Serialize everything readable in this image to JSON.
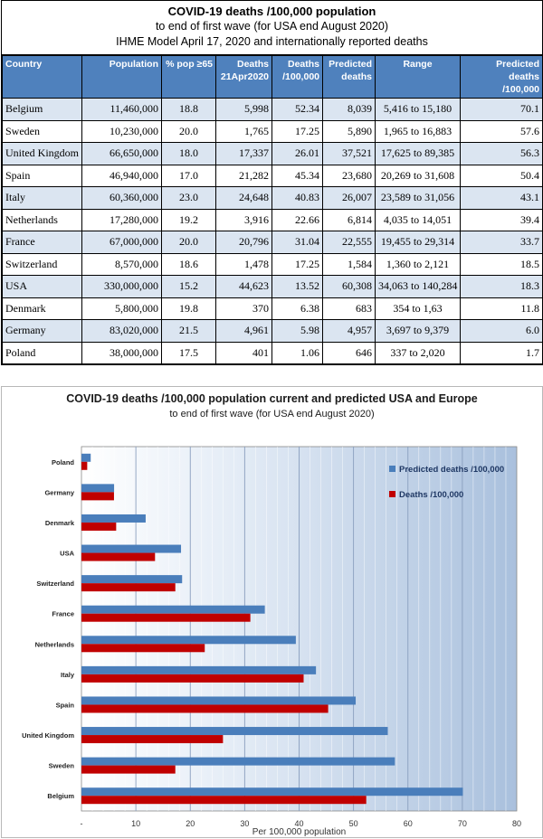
{
  "table": {
    "title": "COVID-19 deaths /100,000 population",
    "subtitle1": "to end of first wave (for USA end August 2020)",
    "subtitle2": "IHME Model April 17, 2020 and internationally reported deaths",
    "headers": {
      "country": "Country",
      "population": "Population",
      "pop65": "% pop ≥65",
      "deaths_a": "Deaths",
      "deaths_b": "21Apr2020",
      "deaths100_a": "Deaths",
      "deaths100_b": "/100,000",
      "predicted_a": "Predicted",
      "predicted_b": "deaths",
      "range": "Range",
      "pred100_a": "Predicted deaths",
      "pred100_b": "/100,000"
    },
    "rows": [
      {
        "country": "Belgium",
        "population": "11,460,000",
        "pop65": "18.8",
        "deaths": "5,998",
        "deaths100": "52.34",
        "predicted": "8,039",
        "range": "5,416 to 15,180",
        "pred100": "70.1"
      },
      {
        "country": "Sweden",
        "population": "10,230,000",
        "pop65": "20.0",
        "deaths": "1,765",
        "deaths100": "17.25",
        "predicted": "5,890",
        "range": "1,965 to 16,883",
        "pred100": "57.6"
      },
      {
        "country": "United Kingdom",
        "population": "66,650,000",
        "pop65": "18.0",
        "deaths": "17,337",
        "deaths100": "26.01",
        "predicted": "37,521",
        "range": "17,625 to 89,385",
        "pred100": "56.3"
      },
      {
        "country": "Spain",
        "population": "46,940,000",
        "pop65": "17.0",
        "deaths": "21,282",
        "deaths100": "45.34",
        "predicted": "23,680",
        "range": "20,269 to 31,608",
        "pred100": "50.4"
      },
      {
        "country": "Italy",
        "population": "60,360,000",
        "pop65": "23.0",
        "deaths": "24,648",
        "deaths100": "40.83",
        "predicted": "26,007",
        "range": "23,589 to 31,056",
        "pred100": "43.1"
      },
      {
        "country": "Netherlands",
        "population": "17,280,000",
        "pop65": "19.2",
        "deaths": "3,916",
        "deaths100": "22.66",
        "predicted": "6,814",
        "range": "4,035 to 14,051",
        "pred100": "39.4"
      },
      {
        "country": "France",
        "population": "67,000,000",
        "pop65": "20.0",
        "deaths": "20,796",
        "deaths100": "31.04",
        "predicted": "22,555",
        "range": "19,455 to 29,314",
        "pred100": "33.7"
      },
      {
        "country": "Switzerland",
        "population": "8,570,000",
        "pop65": "18.6",
        "deaths": "1,478",
        "deaths100": "17.25",
        "predicted": "1,584",
        "range": "1,360 to 2,121",
        "pred100": "18.5"
      },
      {
        "country": "USA",
        "population": "330,000,000",
        "pop65": "15.2",
        "deaths": "44,623",
        "deaths100": "13.52",
        "predicted": "60,308",
        "range": "34,063 to 140,284",
        "pred100": "18.3"
      },
      {
        "country": "Denmark",
        "population": "5,800,000",
        "pop65": "19.8",
        "deaths": "370",
        "deaths100": "6.38",
        "predicted": "683",
        "range": "354 to 1,63",
        "pred100": "11.8"
      },
      {
        "country": "Germany",
        "population": "83,020,000",
        "pop65": "21.5",
        "deaths": "4,961",
        "deaths100": "5.98",
        "predicted": "4,957",
        "range": "3,697 to 9,379",
        "pred100": "6.0"
      },
      {
        "country": "Poland",
        "population": "38,000,000",
        "pop65": "17.5",
        "deaths": "401",
        "deaths100": "1.06",
        "predicted": "646",
        "range": "337 to 2,020",
        "pred100": "1.7"
      }
    ]
  },
  "chart_data": {
    "type": "bar",
    "orientation": "horizontal",
    "title": "COVID-19 deaths /100,000 population current and predicted USA and Europe",
    "subtitle": "to end of first wave (for USA end August 2020)",
    "xlabel": "Per 100,000 population",
    "xlim": [
      0,
      80
    ],
    "x_ticks": [
      "-",
      "10",
      "20",
      "30",
      "40",
      "50",
      "60",
      "70",
      "80"
    ],
    "grid": true,
    "legend_position": "top-right",
    "categories": [
      "Poland",
      "Germany",
      "Denmark",
      "USA",
      "Switzerland",
      "France",
      "Netherlands",
      "Italy",
      "Spain",
      "United Kingdom",
      "Sweden",
      "Belgium"
    ],
    "series": [
      {
        "name": "Predicted deaths /100,000",
        "color": "#4a7ebb",
        "values": [
          1.7,
          6.0,
          11.8,
          18.3,
          18.5,
          33.7,
          39.4,
          43.1,
          50.4,
          56.3,
          57.6,
          70.1
        ]
      },
      {
        "name": "Deaths /100,000",
        "color": "#c00000",
        "values": [
          1.06,
          5.98,
          6.38,
          13.52,
          17.25,
          31.04,
          22.66,
          40.83,
          45.34,
          26.01,
          17.25,
          52.34
        ]
      }
    ]
  }
}
